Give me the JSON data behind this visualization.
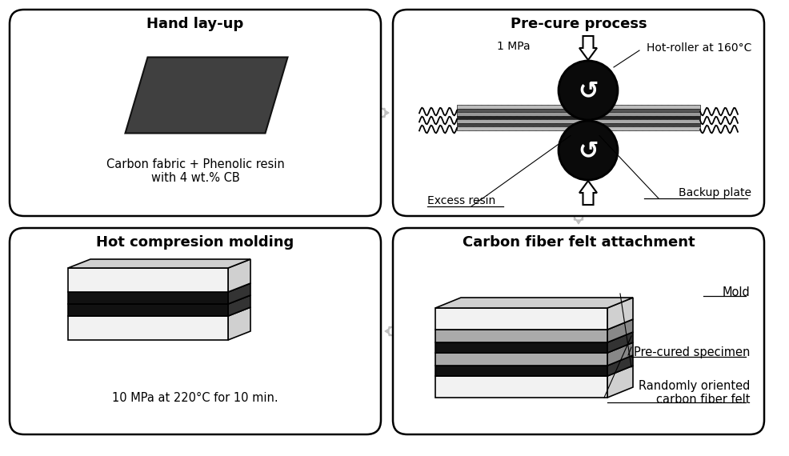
{
  "bg_color": "#ffffff",
  "box1_title": "Hand lay-up",
  "box1_text": "Carbon fabric + Phenolic resin\nwith 4 wt.% CB",
  "box2_title": "Pre-cure process",
  "box2_label1": "1 MPa",
  "box2_label2": "Hot-roller at 160°C",
  "box2_label3": "Excess resin",
  "box2_label4": "Backup plate",
  "box3_title": "Carbon fiber felt attachment",
  "box3_label1": "Mold",
  "box3_label2": "Pre-cured specimen",
  "box3_label3": "Randomly oriented\ncarbon fiber felt",
  "box4_title": "Hot compresion molding",
  "box4_text": "10 MPa at 220°C for 10 min."
}
